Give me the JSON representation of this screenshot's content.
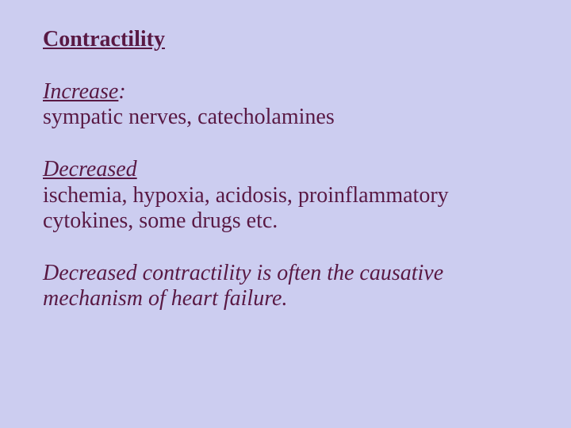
{
  "slide": {
    "background_color": "#cccdf0",
    "text_color": "#591944",
    "font_family": "Times New Roman",
    "title": "Contractility",
    "title_fontsize": 28,
    "body_fontsize": 28,
    "sections": {
      "increase": {
        "label": "Increase",
        "punct": ":",
        "body": "sympatic nerves, catecholamines"
      },
      "decreased": {
        "label": "Decreased",
        "body": "ischemia, hypoxia, acidosis, proinflammatory cytokines, some drugs etc."
      }
    },
    "summary": "Decreased contractility is often the causative mechanism of heart failure."
  }
}
